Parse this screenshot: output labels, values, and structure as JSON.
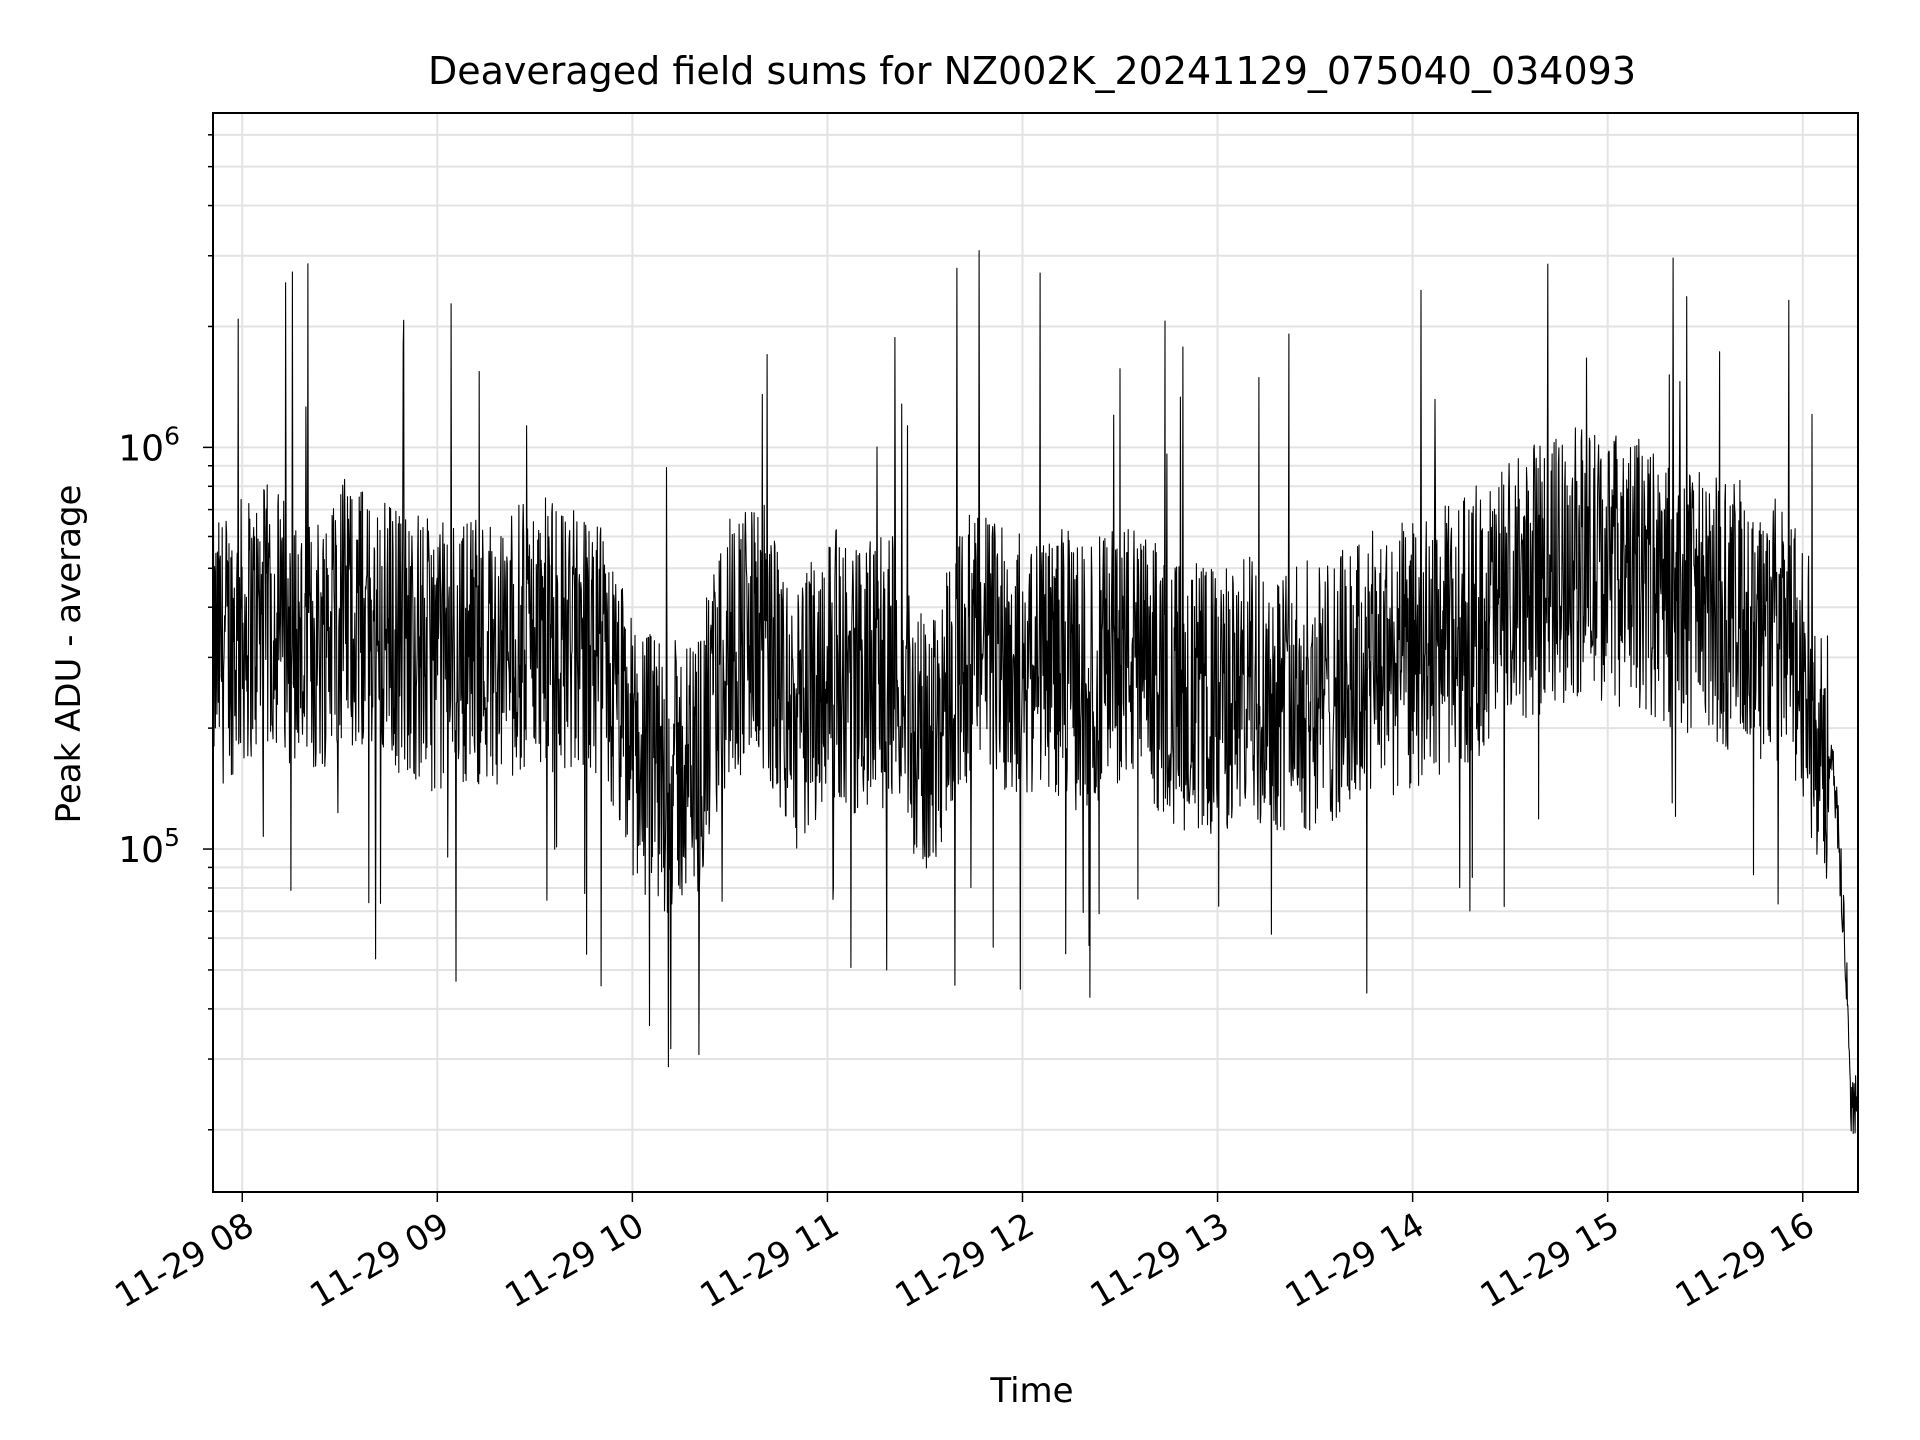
{
  "chart_data": {
    "type": "line",
    "title": "Deaveraged field sums for NZ002K_20241129_075040_034093",
    "xlabel": "Time",
    "ylabel": "Peak ADU - average",
    "x_ticks": [
      "11-29 08",
      "11-29 09",
      "11-29 10",
      "11-29 11",
      "11-29 12",
      "11-29 13",
      "11-29 14",
      "11-29 15",
      "11-29 16"
    ],
    "x_range": [
      "11-29 07:51",
      "11-29 16:17"
    ],
    "y_scale": "log",
    "ylim": [
      14000,
      6800000
    ],
    "y_tick_labels": [
      {
        "base": "10",
        "exp": "5",
        "value": 100000
      },
      {
        "base": "10",
        "exp": "6",
        "value": 1000000
      }
    ],
    "grid": true,
    "line_color": "#000000",
    "series": [
      {
        "values_note_free": true,
        "x": [
          "07:51",
          "08:00",
          "08:10",
          "08:20",
          "08:30",
          "08:40",
          "08:50",
          "09:00",
          "09:10",
          "09:20",
          "09:30",
          "09:40",
          "09:50",
          "10:00",
          "10:10",
          "10:20",
          "10:30",
          "10:40",
          "10:50",
          "11:00",
          "11:10",
          "11:20",
          "11:30",
          "11:40",
          "11:50",
          "12:00",
          "12:10",
          "12:20",
          "12:30",
          "12:40",
          "12:50",
          "13:00",
          "13:10",
          "13:20",
          "13:30",
          "13:40",
          "13:50",
          "14:00",
          "14:10",
          "14:20",
          "14:30",
          "14:40",
          "14:50",
          "15:00",
          "15:10",
          "15:20",
          "15:30",
          "15:40",
          "15:50",
          "16:00",
          "16:05",
          "16:10",
          "16:13",
          "16:15",
          "16:17"
        ],
        "y": [
          300000,
          350000,
          380000,
          300000,
          400000,
          360000,
          330000,
          300000,
          320000,
          310000,
          350000,
          330000,
          300000,
          180000,
          150000,
          160000,
          330000,
          340000,
          200000,
          300000,
          260000,
          280000,
          170000,
          300000,
          330000,
          280000,
          300000,
          260000,
          320000,
          270000,
          240000,
          230000,
          250000,
          240000,
          240000,
          260000,
          290000,
          300000,
          330000,
          370000,
          420000,
          480000,
          520000,
          500000,
          480000,
          420000,
          400000,
          380000,
          360000,
          280000,
          200000,
          140000,
          60000,
          22000,
          25000
        ]
      }
    ]
  }
}
